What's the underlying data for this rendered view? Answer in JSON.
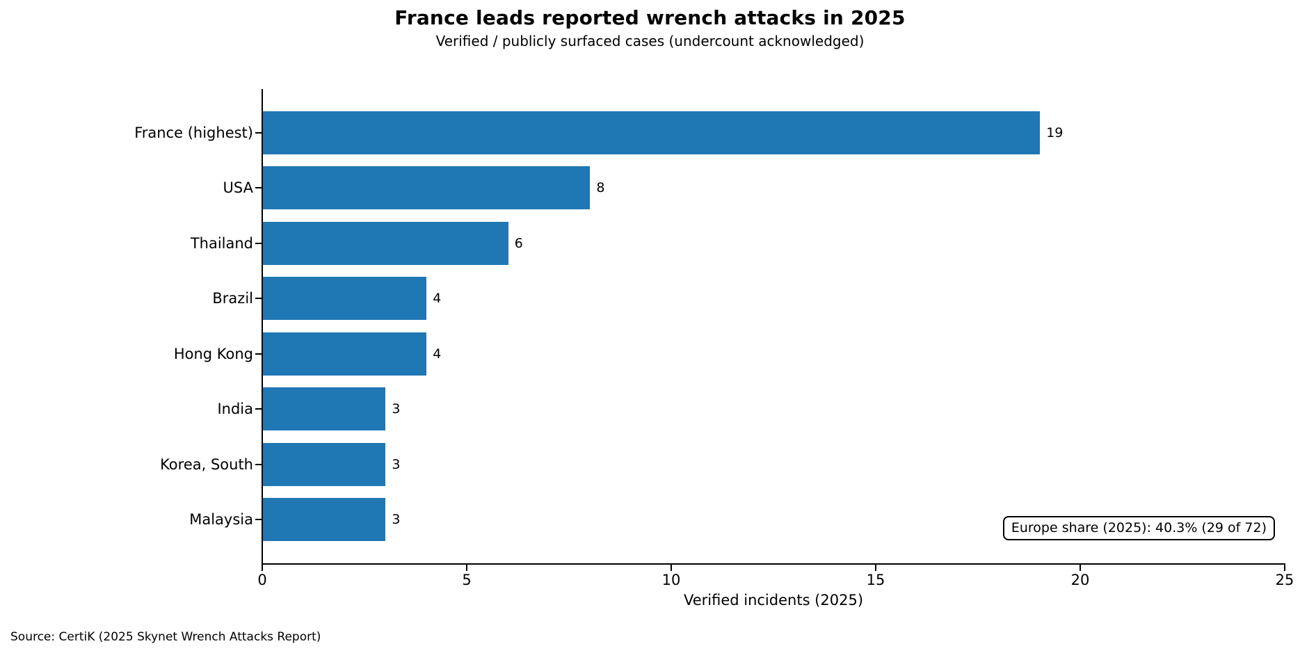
{
  "source_note": "Source: CertiK (2025 Skynet Wrench Attacks Report)",
  "colors": {
    "bar": "#1f77b4",
    "text": "#000000",
    "background": "#ffffff",
    "axis": "#000000"
  },
  "chart_data": {
    "type": "bar",
    "orientation": "horizontal",
    "title": "France leads reported wrench attacks in 2025",
    "subtitle": "Verified / publicly surfaced cases (undercount acknowledged)",
    "categories": [
      "France (highest)",
      "USA",
      "Thailand",
      "Brazil",
      "Hong Kong",
      "India",
      "Korea, South",
      "Malaysia"
    ],
    "values": [
      19,
      8,
      6,
      4,
      4,
      3,
      3,
      3
    ],
    "value_labels": [
      "19",
      "8",
      "6",
      "4",
      "4",
      "3",
      "3",
      "3"
    ],
    "xlabel": "Verified incidents (2025)",
    "ylabel": "",
    "xlim": [
      0,
      25
    ],
    "xticks": [
      0,
      5,
      10,
      15,
      20,
      25
    ],
    "grid": false,
    "legend": null,
    "annotation": "Europe share (2025): 40.3% (29 of 72)",
    "bar_color": "#1f77b4"
  }
}
